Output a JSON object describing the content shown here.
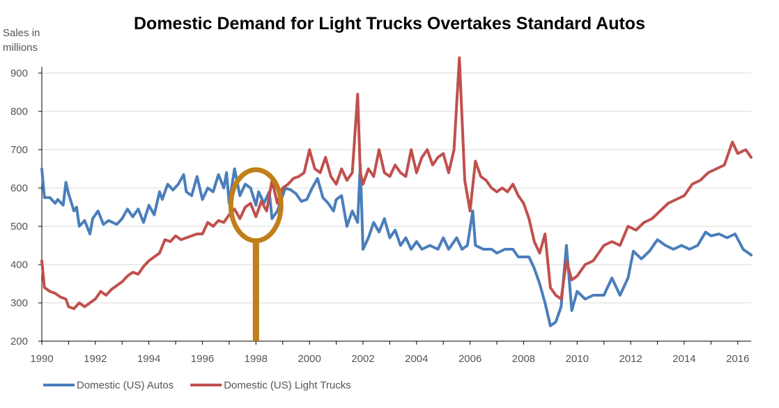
{
  "chart_data": {
    "type": "line",
    "title": "Domestic Demand for Light Trucks Overtakes Standard Autos",
    "ylabel": [
      "Sales in",
      "millions"
    ],
    "xlabel": "",
    "ylim": [
      200,
      950
    ],
    "xlim": [
      1990,
      2016.5
    ],
    "yticks": [
      200,
      300,
      400,
      500,
      600,
      700,
      800,
      900
    ],
    "xticks": [
      1990,
      1992,
      1994,
      1996,
      1998,
      2000,
      2002,
      2004,
      2006,
      2008,
      2010,
      2012,
      2014,
      2016
    ],
    "grid": "horizontal",
    "legend_position": "bottom-left",
    "highlight_year": 1998,
    "highlight_value": 555,
    "highlight_color": "#c07f1a",
    "series": [
      {
        "name": "Domestic (US) Autos",
        "color": "#4a7ebb",
        "points": [
          [
            1990.0,
            650
          ],
          [
            1990.1,
            575
          ],
          [
            1990.3,
            575
          ],
          [
            1990.5,
            560
          ],
          [
            1990.6,
            570
          ],
          [
            1990.8,
            555
          ],
          [
            1990.9,
            615
          ],
          [
            1991.0,
            585
          ],
          [
            1991.2,
            540
          ],
          [
            1991.3,
            550
          ],
          [
            1991.4,
            500
          ],
          [
            1991.6,
            515
          ],
          [
            1991.8,
            480
          ],
          [
            1991.9,
            520
          ],
          [
            1992.1,
            540
          ],
          [
            1992.3,
            505
          ],
          [
            1992.5,
            515
          ],
          [
            1992.8,
            505
          ],
          [
            1993.0,
            520
          ],
          [
            1993.2,
            545
          ],
          [
            1993.4,
            525
          ],
          [
            1993.6,
            545
          ],
          [
            1993.8,
            510
          ],
          [
            1994.0,
            555
          ],
          [
            1994.2,
            530
          ],
          [
            1994.4,
            590
          ],
          [
            1994.5,
            570
          ],
          [
            1994.7,
            610
          ],
          [
            1994.9,
            595
          ],
          [
            1995.1,
            610
          ],
          [
            1995.3,
            635
          ],
          [
            1995.4,
            590
          ],
          [
            1995.6,
            580
          ],
          [
            1995.8,
            630
          ],
          [
            1996.0,
            570
          ],
          [
            1996.2,
            600
          ],
          [
            1996.4,
            590
          ],
          [
            1996.6,
            635
          ],
          [
            1996.8,
            600
          ],
          [
            1996.9,
            640
          ],
          [
            1997.0,
            560
          ],
          [
            1997.2,
            650
          ],
          [
            1997.4,
            580
          ],
          [
            1997.6,
            610
          ],
          [
            1997.8,
            600
          ],
          [
            1998.0,
            555
          ],
          [
            1998.1,
            590
          ],
          [
            1998.3,
            560
          ],
          [
            1998.5,
            590
          ],
          [
            1998.6,
            520
          ],
          [
            1998.8,
            540
          ],
          [
            1999.0,
            580
          ],
          [
            1999.1,
            600
          ],
          [
            1999.3,
            595
          ],
          [
            1999.5,
            585
          ],
          [
            1999.7,
            565
          ],
          [
            1999.9,
            570
          ],
          [
            2000.1,
            600
          ],
          [
            2000.3,
            625
          ],
          [
            2000.5,
            575
          ],
          [
            2000.7,
            560
          ],
          [
            2000.9,
            540
          ],
          [
            2001.0,
            570
          ],
          [
            2001.2,
            580
          ],
          [
            2001.4,
            500
          ],
          [
            2001.6,
            540
          ],
          [
            2001.8,
            510
          ],
          [
            2001.9,
            660
          ],
          [
            2002.0,
            440
          ],
          [
            2002.2,
            470
          ],
          [
            2002.4,
            510
          ],
          [
            2002.6,
            485
          ],
          [
            2002.8,
            520
          ],
          [
            2003.0,
            470
          ],
          [
            2003.2,
            490
          ],
          [
            2003.4,
            450
          ],
          [
            2003.6,
            470
          ],
          [
            2003.8,
            440
          ],
          [
            2004.0,
            460
          ],
          [
            2004.2,
            440
          ],
          [
            2004.5,
            450
          ],
          [
            2004.8,
            440
          ],
          [
            2005.0,
            470
          ],
          [
            2005.2,
            440
          ],
          [
            2005.5,
            470
          ],
          [
            2005.7,
            440
          ],
          [
            2005.9,
            450
          ],
          [
            2006.1,
            540
          ],
          [
            2006.2,
            450
          ],
          [
            2006.5,
            440
          ],
          [
            2006.8,
            440
          ],
          [
            2007.0,
            430
          ],
          [
            2007.3,
            440
          ],
          [
            2007.6,
            440
          ],
          [
            2007.8,
            420
          ],
          [
            2008.0,
            420
          ],
          [
            2008.2,
            420
          ],
          [
            2008.4,
            390
          ],
          [
            2008.6,
            350
          ],
          [
            2008.8,
            300
          ],
          [
            2009.0,
            240
          ],
          [
            2009.2,
            250
          ],
          [
            2009.4,
            290
          ],
          [
            2009.6,
            450
          ],
          [
            2009.8,
            280
          ],
          [
            2010.0,
            330
          ],
          [
            2010.3,
            310
          ],
          [
            2010.6,
            320
          ],
          [
            2011.0,
            320
          ],
          [
            2011.3,
            365
          ],
          [
            2011.6,
            320
          ],
          [
            2011.9,
            365
          ],
          [
            2012.1,
            435
          ],
          [
            2012.4,
            415
          ],
          [
            2012.7,
            435
          ],
          [
            2013.0,
            465
          ],
          [
            2013.3,
            450
          ],
          [
            2013.6,
            440
          ],
          [
            2013.9,
            450
          ],
          [
            2014.2,
            440
          ],
          [
            2014.5,
            450
          ],
          [
            2014.8,
            485
          ],
          [
            2015.0,
            475
          ],
          [
            2015.3,
            480
          ],
          [
            2015.6,
            470
          ],
          [
            2015.9,
            480
          ],
          [
            2016.2,
            440
          ],
          [
            2016.5,
            425
          ]
        ]
      },
      {
        "name": "Domestic (US) Light Trucks",
        "color": "#c0504d",
        "points": [
          [
            1990.0,
            410
          ],
          [
            1990.1,
            340
          ],
          [
            1990.3,
            330
          ],
          [
            1990.5,
            325
          ],
          [
            1990.7,
            315
          ],
          [
            1990.9,
            310
          ],
          [
            1991.0,
            290
          ],
          [
            1991.2,
            285
          ],
          [
            1991.4,
            300
          ],
          [
            1991.6,
            290
          ],
          [
            1991.8,
            300
          ],
          [
            1992.0,
            310
          ],
          [
            1992.2,
            330
          ],
          [
            1992.4,
            320
          ],
          [
            1992.6,
            335
          ],
          [
            1992.8,
            345
          ],
          [
            1993.0,
            355
          ],
          [
            1993.2,
            370
          ],
          [
            1993.4,
            380
          ],
          [
            1993.6,
            375
          ],
          [
            1993.8,
            395
          ],
          [
            1994.0,
            410
          ],
          [
            1994.2,
            420
          ],
          [
            1994.4,
            430
          ],
          [
            1994.6,
            465
          ],
          [
            1994.8,
            460
          ],
          [
            1995.0,
            475
          ],
          [
            1995.2,
            465
          ],
          [
            1995.4,
            470
          ],
          [
            1995.6,
            475
          ],
          [
            1995.8,
            480
          ],
          [
            1996.0,
            480
          ],
          [
            1996.2,
            510
          ],
          [
            1996.4,
            500
          ],
          [
            1996.6,
            515
          ],
          [
            1996.8,
            510
          ],
          [
            1997.0,
            530
          ],
          [
            1997.2,
            545
          ],
          [
            1997.4,
            520
          ],
          [
            1997.6,
            550
          ],
          [
            1997.8,
            560
          ],
          [
            1998.0,
            525
          ],
          [
            1998.2,
            565
          ],
          [
            1998.4,
            540
          ],
          [
            1998.6,
            620
          ],
          [
            1998.8,
            560
          ],
          [
            1999.0,
            600
          ],
          [
            1999.2,
            610
          ],
          [
            1999.4,
            625
          ],
          [
            1999.6,
            630
          ],
          [
            1999.8,
            640
          ],
          [
            2000.0,
            700
          ],
          [
            2000.2,
            650
          ],
          [
            2000.4,
            640
          ],
          [
            2000.6,
            680
          ],
          [
            2000.8,
            630
          ],
          [
            2001.0,
            610
          ],
          [
            2001.2,
            650
          ],
          [
            2001.4,
            620
          ],
          [
            2001.6,
            640
          ],
          [
            2001.8,
            845
          ],
          [
            2001.9,
            640
          ],
          [
            2002.0,
            610
          ],
          [
            2002.2,
            650
          ],
          [
            2002.4,
            630
          ],
          [
            2002.6,
            700
          ],
          [
            2002.8,
            640
          ],
          [
            2003.0,
            630
          ],
          [
            2003.2,
            660
          ],
          [
            2003.4,
            640
          ],
          [
            2003.6,
            630
          ],
          [
            2003.8,
            700
          ],
          [
            2004.0,
            640
          ],
          [
            2004.2,
            680
          ],
          [
            2004.4,
            700
          ],
          [
            2004.6,
            660
          ],
          [
            2004.8,
            680
          ],
          [
            2005.0,
            690
          ],
          [
            2005.2,
            640
          ],
          [
            2005.4,
            700
          ],
          [
            2005.6,
            940
          ],
          [
            2005.8,
            620
          ],
          [
            2006.0,
            540
          ],
          [
            2006.2,
            670
          ],
          [
            2006.4,
            630
          ],
          [
            2006.6,
            620
          ],
          [
            2006.8,
            600
          ],
          [
            2007.0,
            590
          ],
          [
            2007.2,
            600
          ],
          [
            2007.4,
            590
          ],
          [
            2007.6,
            610
          ],
          [
            2007.8,
            580
          ],
          [
            2008.0,
            560
          ],
          [
            2008.2,
            520
          ],
          [
            2008.4,
            460
          ],
          [
            2008.6,
            430
          ],
          [
            2008.8,
            480
          ],
          [
            2009.0,
            340
          ],
          [
            2009.2,
            320
          ],
          [
            2009.4,
            310
          ],
          [
            2009.6,
            410
          ],
          [
            2009.8,
            360
          ],
          [
            2010.0,
            370
          ],
          [
            2010.3,
            400
          ],
          [
            2010.6,
            410
          ],
          [
            2011.0,
            450
          ],
          [
            2011.3,
            460
          ],
          [
            2011.6,
            450
          ],
          [
            2011.9,
            500
          ],
          [
            2012.2,
            490
          ],
          [
            2012.5,
            510
          ],
          [
            2012.8,
            520
          ],
          [
            2013.1,
            540
          ],
          [
            2013.4,
            560
          ],
          [
            2013.7,
            570
          ],
          [
            2014.0,
            580
          ],
          [
            2014.3,
            610
          ],
          [
            2014.6,
            620
          ],
          [
            2014.9,
            640
          ],
          [
            2015.2,
            650
          ],
          [
            2015.5,
            660
          ],
          [
            2015.8,
            720
          ],
          [
            2016.0,
            690
          ],
          [
            2016.3,
            700
          ],
          [
            2016.5,
            680
          ]
        ]
      }
    ]
  }
}
